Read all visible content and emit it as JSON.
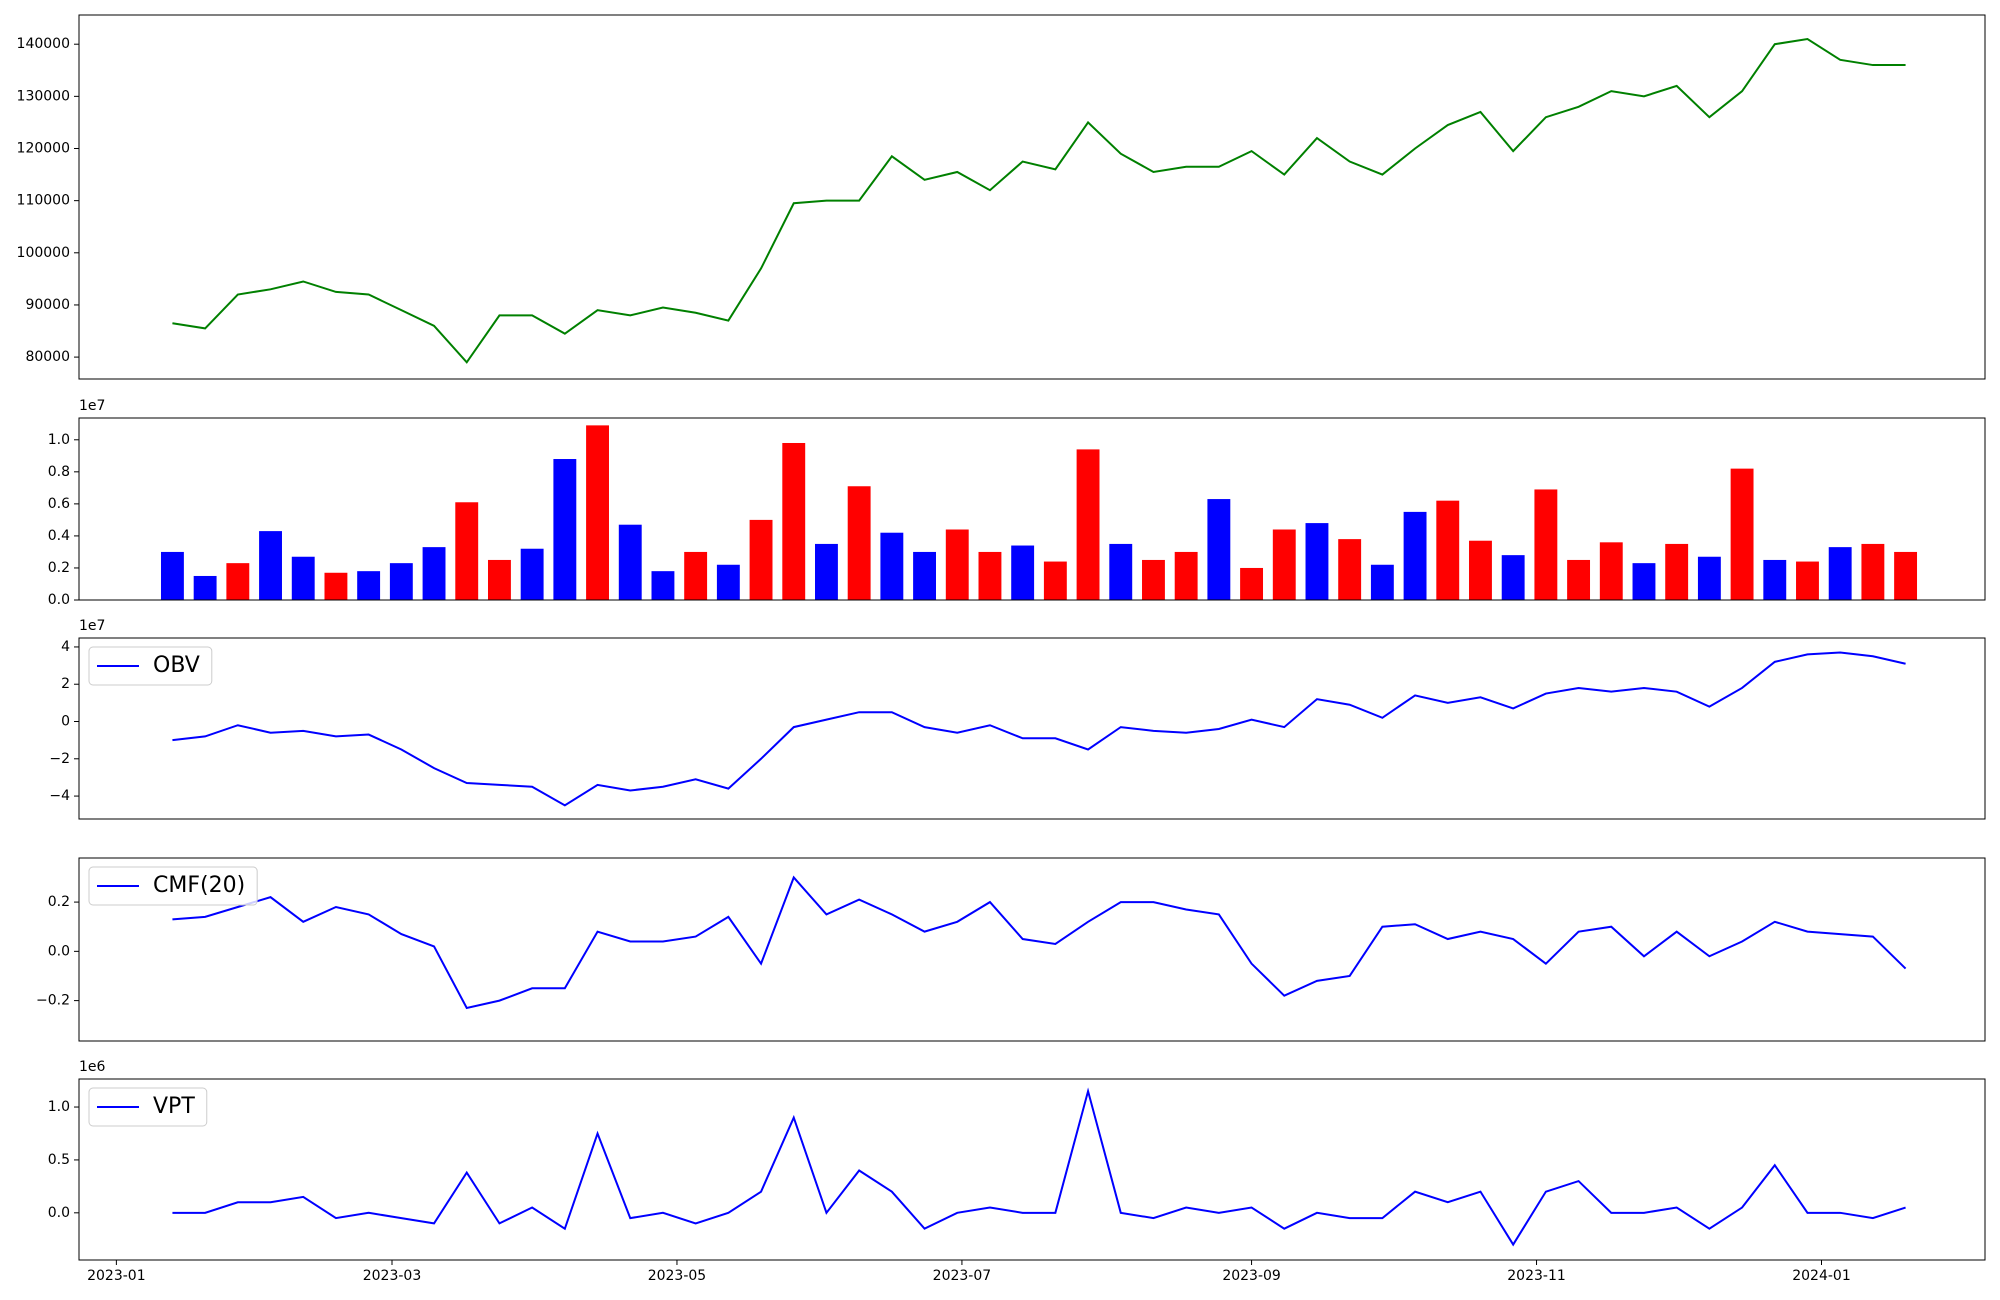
{
  "chart_data": [
    {
      "type": "line",
      "color": "#008000",
      "x": [
        "2023-01-13",
        "2023-01-20",
        "2023-01-27",
        "2023-02-03",
        "2023-02-10",
        "2023-02-17",
        "2023-02-24",
        "2023-03-03",
        "2023-03-10",
        "2023-03-17",
        "2023-03-24",
        "2023-03-31",
        "2023-04-07",
        "2023-04-14",
        "2023-04-21",
        "2023-04-28",
        "2023-05-05",
        "2023-05-12",
        "2023-05-19",
        "2023-05-26",
        "2023-06-02",
        "2023-06-09",
        "2023-06-16",
        "2023-06-23",
        "2023-06-30",
        "2023-07-07",
        "2023-07-14",
        "2023-07-21",
        "2023-07-28",
        "2023-08-04",
        "2023-08-11",
        "2023-08-18",
        "2023-08-25",
        "2023-09-01",
        "2023-09-08",
        "2023-09-15",
        "2023-09-22",
        "2023-09-29",
        "2023-10-06",
        "2023-10-13",
        "2023-10-20",
        "2023-10-27",
        "2023-11-03",
        "2023-11-10",
        "2023-11-17",
        "2023-11-24",
        "2023-12-01",
        "2023-12-08",
        "2023-12-15",
        "2023-12-22",
        "2023-12-29",
        "2024-01-05",
        "2024-01-12",
        "2024-01-19"
      ],
      "values": [
        86500,
        85500,
        92000,
        93000,
        94500,
        92500,
        92000,
        89000,
        86000,
        79000,
        88000,
        88000,
        84500,
        89000,
        88000,
        89500,
        88500,
        87000,
        97000,
        109500,
        110000,
        110000,
        118500,
        114000,
        115500,
        112000,
        117500,
        116000,
        125000,
        119000,
        115500,
        116500,
        116500,
        119500,
        115000,
        122000,
        117500,
        115000,
        120000,
        124500,
        127000,
        119500,
        126000,
        128000,
        131000,
        130000,
        132000,
        126000,
        131000,
        140000,
        141000,
        137000,
        136000,
        136000
      ],
      "xlim": [
        "2022-12-24",
        "2024-02-05"
      ],
      "ylim": [
        75800,
        145600
      ],
      "yticks": [
        80000,
        90000,
        100000,
        110000,
        120000,
        130000,
        140000
      ]
    },
    {
      "type": "bar",
      "offset_label": "1e7",
      "x": [
        "2023-01-13",
        "2023-01-20",
        "2023-01-27",
        "2023-02-03",
        "2023-02-10",
        "2023-02-17",
        "2023-02-24",
        "2023-03-03",
        "2023-03-10",
        "2023-03-17",
        "2023-03-24",
        "2023-03-31",
        "2023-04-07",
        "2023-04-14",
        "2023-04-21",
        "2023-04-28",
        "2023-05-05",
        "2023-05-12",
        "2023-05-19",
        "2023-05-26",
        "2023-06-02",
        "2023-06-09",
        "2023-06-16",
        "2023-06-23",
        "2023-06-30",
        "2023-07-07",
        "2023-07-14",
        "2023-07-21",
        "2023-07-28",
        "2023-08-04",
        "2023-08-11",
        "2023-08-18",
        "2023-08-25",
        "2023-09-01",
        "2023-09-08",
        "2023-09-15",
        "2023-09-22",
        "2023-09-29",
        "2023-10-06",
        "2023-10-13",
        "2023-10-20",
        "2023-10-27",
        "2023-11-03",
        "2023-11-10",
        "2023-11-17",
        "2023-11-24",
        "2023-12-01",
        "2023-12-08",
        "2023-12-15",
        "2023-12-22",
        "2023-12-29",
        "2024-01-05",
        "2024-01-12",
        "2024-01-19"
      ],
      "values": [
        0.3,
        0.15,
        0.23,
        0.43,
        0.27,
        0.17,
        0.18,
        0.23,
        0.33,
        0.61,
        0.25,
        0.32,
        0.88,
        1.09,
        0.47,
        0.18,
        0.3,
        0.22,
        0.5,
        0.98,
        0.35,
        0.71,
        0.42,
        0.3,
        0.44,
        0.3,
        0.34,
        0.24,
        0.94,
        0.35,
        0.25,
        0.3,
        0.63,
        0.2,
        0.44,
        0.48,
        0.38,
        0.22,
        0.55,
        0.62,
        0.37,
        0.28,
        0.69,
        0.25,
        0.36,
        0.23,
        0.35,
        0.27,
        0.82,
        0.25,
        0.24,
        0.33,
        0.35,
        0.3
      ],
      "colors": [
        "#0000ff",
        "#0000ff",
        "#ff0000",
        "#0000ff",
        "#0000ff",
        "#ff0000",
        "#0000ff",
        "#0000ff",
        "#0000ff",
        "#ff0000",
        "#ff0000",
        "#0000ff",
        "#0000ff",
        "#ff0000",
        "#0000ff",
        "#0000ff",
        "#ff0000",
        "#0000ff",
        "#ff0000",
        "#ff0000",
        "#0000ff",
        "#ff0000",
        "#0000ff",
        "#0000ff",
        "#ff0000",
        "#ff0000",
        "#0000ff",
        "#ff0000",
        "#ff0000",
        "#0000ff",
        "#ff0000",
        "#ff0000",
        "#0000ff",
        "#ff0000",
        "#ff0000",
        "#0000ff",
        "#ff0000",
        "#0000ff",
        "#0000ff",
        "#ff0000",
        "#ff0000",
        "#0000ff",
        "#ff0000",
        "#ff0000",
        "#ff0000",
        "#0000ff",
        "#ff0000",
        "#0000ff",
        "#ff0000",
        "#0000ff",
        "#ff0000",
        "#0000ff",
        "#ff0000",
        "#ff0000"
      ],
      "xlim": [
        "2022-12-24",
        "2024-02-05"
      ],
      "ylim": [
        0,
        1.136
      ],
      "yticks": [
        {
          "value": 0,
          "label": "0.0"
        },
        0.2,
        0.4,
        0.6,
        0.8,
        {
          "value": 1,
          "label": "1.0"
        }
      ]
    },
    {
      "type": "line",
      "offset_label": "1e7",
      "legend": "upper left",
      "x": [
        "2023-01-13",
        "2023-01-20",
        "2023-01-27",
        "2023-02-03",
        "2023-02-10",
        "2023-02-17",
        "2023-02-24",
        "2023-03-03",
        "2023-03-10",
        "2023-03-17",
        "2023-03-24",
        "2023-03-31",
        "2023-04-07",
        "2023-04-14",
        "2023-04-21",
        "2023-04-28",
        "2023-05-05",
        "2023-05-12",
        "2023-05-19",
        "2023-05-26",
        "2023-06-02",
        "2023-06-09",
        "2023-06-16",
        "2023-06-23",
        "2023-06-30",
        "2023-07-07",
        "2023-07-14",
        "2023-07-21",
        "2023-07-28",
        "2023-08-04",
        "2023-08-11",
        "2023-08-18",
        "2023-08-25",
        "2023-09-01",
        "2023-09-08",
        "2023-09-15",
        "2023-09-22",
        "2023-09-29",
        "2023-10-06",
        "2023-10-13",
        "2023-10-20",
        "2023-10-27",
        "2023-11-03",
        "2023-11-10",
        "2023-11-17",
        "2023-11-24",
        "2023-12-01",
        "2023-12-08",
        "2023-12-15",
        "2023-12-22",
        "2023-12-29",
        "2024-01-05",
        "2024-01-12",
        "2024-01-19"
      ],
      "series": [
        {
          "name": "OBV",
          "color": "#0000ff",
          "values": [
            -1,
            -0.8,
            -0.2,
            -0.6,
            -0.5,
            -0.8,
            -0.7,
            -1.5,
            -2.5,
            -3.3,
            -3.4,
            -3.5,
            -4.5,
            -3.4,
            -3.7,
            -3.5,
            -3.1,
            -3.6,
            -2,
            -0.3,
            0.1,
            0.5,
            0.5,
            -0.3,
            -0.6,
            -0.2,
            -0.9,
            -0.9,
            -1.5,
            -0.3,
            -0.5,
            -0.6,
            -0.4,
            0.1,
            -0.3,
            1.2,
            0.9,
            0.2,
            1.4,
            1,
            1.3,
            0.7,
            1.5,
            1.8,
            1.6,
            1.8,
            1.6,
            0.8,
            1.8,
            3.2,
            3.6,
            3.7,
            3.5,
            3.1
          ]
        }
      ],
      "xlim": [
        "2022-12-24",
        "2024-02-05"
      ],
      "ylim": [
        -5.23,
        4.48
      ],
      "yticks": [
        {
          "value": -4,
          "label": "−4"
        },
        {
          "value": -2,
          "label": "−2"
        },
        0,
        2,
        4
      ]
    },
    {
      "type": "line",
      "legend": "upper left",
      "x": [
        "2023-01-13",
        "2023-01-20",
        "2023-01-27",
        "2023-02-03",
        "2023-02-10",
        "2023-02-17",
        "2023-02-24",
        "2023-03-03",
        "2023-03-10",
        "2023-03-17",
        "2023-03-24",
        "2023-03-31",
        "2023-04-07",
        "2023-04-14",
        "2023-04-21",
        "2023-04-28",
        "2023-05-05",
        "2023-05-12",
        "2023-05-19",
        "2023-05-26",
        "2023-06-02",
        "2023-06-09",
        "2023-06-16",
        "2023-06-23",
        "2023-06-30",
        "2023-07-07",
        "2023-07-14",
        "2023-07-21",
        "2023-07-28",
        "2023-08-04",
        "2023-08-11",
        "2023-08-18",
        "2023-08-25",
        "2023-09-01",
        "2023-09-08",
        "2023-09-15",
        "2023-09-22",
        "2023-09-29",
        "2023-10-06",
        "2023-10-13",
        "2023-10-20",
        "2023-10-27",
        "2023-11-03",
        "2023-11-10",
        "2023-11-17",
        "2023-11-24",
        "2023-12-01",
        "2023-12-08",
        "2023-12-15",
        "2023-12-22",
        "2023-12-29",
        "2024-01-05",
        "2024-01-12",
        "2024-01-19"
      ],
      "series": [
        {
          "name": "CMF(20)",
          "color": "#0000ff",
          "values": [
            0.13,
            0.14,
            0.18,
            0.22,
            0.12,
            0.18,
            0.15,
            0.07,
            0.02,
            -0.23,
            -0.2,
            -0.15,
            -0.15,
            0.08,
            0.04,
            0.04,
            0.06,
            0.14,
            -0.05,
            0.3,
            0.15,
            0.21,
            0.15,
            0.08,
            0.12,
            0.2,
            0.05,
            0.03,
            0.12,
            0.2,
            0.2,
            0.17,
            0.15,
            -0.05,
            -0.18,
            -0.12,
            -0.1,
            0.1,
            0.11,
            0.05,
            0.08,
            0.05,
            -0.05,
            0.08,
            0.1,
            -0.02,
            0.08,
            -0.02,
            0.04,
            0.12,
            0.08,
            0.07,
            0.06,
            -0.07
          ]
        }
      ],
      "xlim": [
        "2022-12-24",
        "2024-02-05"
      ],
      "ylim": [
        -0.364,
        0.379
      ],
      "yticks": [
        {
          "value": -0.2,
          "label": "−0.2"
        },
        {
          "value": 0,
          "label": "0.0"
        },
        0.2
      ]
    },
    {
      "type": "line",
      "offset_label": "1e6",
      "legend": "upper left",
      "x": [
        "2023-01-13",
        "2023-01-20",
        "2023-01-27",
        "2023-02-03",
        "2023-02-10",
        "2023-02-17",
        "2023-02-24",
        "2023-03-03",
        "2023-03-10",
        "2023-03-17",
        "2023-03-24",
        "2023-03-31",
        "2023-04-07",
        "2023-04-14",
        "2023-04-21",
        "2023-04-28",
        "2023-05-05",
        "2023-05-12",
        "2023-05-19",
        "2023-05-26",
        "2023-06-02",
        "2023-06-09",
        "2023-06-16",
        "2023-06-23",
        "2023-06-30",
        "2023-07-07",
        "2023-07-14",
        "2023-07-21",
        "2023-07-28",
        "2023-08-04",
        "2023-08-11",
        "2023-08-18",
        "2023-08-25",
        "2023-09-01",
        "2023-09-08",
        "2023-09-15",
        "2023-09-22",
        "2023-09-29",
        "2023-10-06",
        "2023-10-13",
        "2023-10-20",
        "2023-10-27",
        "2023-11-03",
        "2023-11-10",
        "2023-11-17",
        "2023-11-24",
        "2023-12-01",
        "2023-12-08",
        "2023-12-15",
        "2023-12-22",
        "2023-12-29",
        "2024-01-05",
        "2024-01-12",
        "2024-01-19"
      ],
      "series": [
        {
          "name": "VPT",
          "color": "#0000ff",
          "values": [
            0,
            0,
            0.1,
            0.1,
            0.15,
            -0.05,
            0,
            -0.05,
            -0.1,
            0.38,
            -0.1,
            0.05,
            -0.15,
            0.75,
            -0.05,
            0,
            -0.1,
            0,
            0.2,
            0.9,
            0,
            0.4,
            0.2,
            -0.15,
            0,
            0.05,
            0,
            0,
            1.15,
            0,
            -0.05,
            0.05,
            0,
            0.05,
            -0.15,
            0,
            -0.05,
            -0.05,
            0.2,
            0.1,
            0.2,
            -0.3,
            0.2,
            0.3,
            0,
            0,
            0.05,
            -0.15,
            0.05,
            0.45,
            0,
            0,
            -0.05,
            0.05
          ]
        }
      ],
      "xlim": [
        "2022-12-24",
        "2024-02-05"
      ],
      "ylim": [
        -0.446,
        1.265
      ],
      "yticks": [
        {
          "value": 0,
          "label": "0.0"
        },
        0.5,
        {
          "value": 1,
          "label": "1.0"
        }
      ],
      "xticks": [
        {
          "value": "2023-01-01",
          "label": "2023-01"
        },
        {
          "value": "2023-03-01",
          "label": "2023-03"
        },
        {
          "value": "2023-05-01",
          "label": "2023-05"
        },
        {
          "value": "2023-07-01",
          "label": "2023-07"
        },
        {
          "value": "2023-09-01",
          "label": "2023-09"
        },
        {
          "value": "2023-11-01",
          "label": "2023-11"
        },
        {
          "value": "2024-01-01",
          "label": "2024-01"
        }
      ]
    }
  ]
}
